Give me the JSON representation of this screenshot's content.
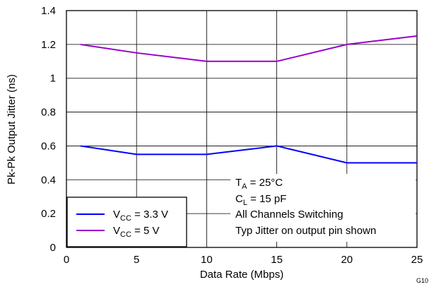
{
  "chart_data": {
    "type": "line",
    "xlabel": "Data Rate (Mbps)",
    "ylabel": "Pk-Pk Output Jitter (ns)",
    "xlim": [
      0,
      25
    ],
    "ylim": [
      0,
      1.4
    ],
    "xticks": [
      0,
      5,
      10,
      15,
      20,
      25
    ],
    "xtick_labels": [
      "0",
      "5",
      "10",
      "15",
      "20",
      "25"
    ],
    "yticks": [
      0,
      0.2,
      0.4,
      0.6,
      0.8,
      1,
      1.2,
      1.4
    ],
    "ytick_labels": [
      "0",
      "0.2",
      "0.4",
      "0.6",
      "0.8",
      "1",
      "1.2",
      "1.4"
    ],
    "grid": true,
    "legend_placement": "bottom-left",
    "series": [
      {
        "name": "VCC = 3.3 V",
        "label_main": "V",
        "label_sub": "CC",
        "label_rest": " = 3.3 V",
        "color": "#0000ff",
        "x": [
          1,
          5,
          10,
          15,
          20,
          25
        ],
        "values": [
          0.6,
          0.55,
          0.55,
          0.6,
          0.5,
          0.5
        ]
      },
      {
        "name": "VCC = 5 V",
        "label_main": "V",
        "label_sub": "CC",
        "label_rest": " = 5 V",
        "color": "#9900cc",
        "x": [
          1,
          5,
          10,
          15,
          20,
          25
        ],
        "values": [
          1.2,
          1.15,
          1.1,
          1.1,
          1.2,
          1.25
        ]
      }
    ],
    "annotations": {
      "ta_main": "T",
      "ta_sub": "A",
      "ta_rest": " = 25°C",
      "cl_main": "C",
      "cl_sub": "L",
      "cl_rest": " = 15 pF",
      "line3": "All Channels Switching",
      "line4": "Typ Jitter on output pin shown"
    },
    "figure_id": "G10"
  }
}
